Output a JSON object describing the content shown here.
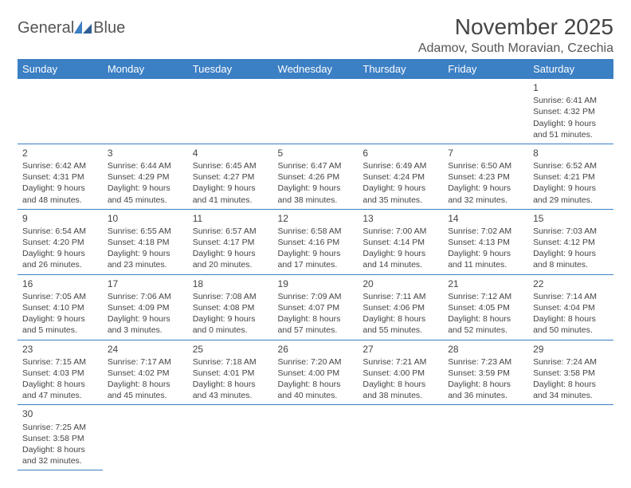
{
  "logo": {
    "text1": "General",
    "text2": "Blue"
  },
  "title": "November 2025",
  "location": "Adamov, South Moravian, Czechia",
  "colors": {
    "header_bg": "#3b7fc4",
    "header_text": "#ffffff",
    "border": "#3b7fc4",
    "text": "#444444",
    "background": "#ffffff"
  },
  "weekdays": [
    "Sunday",
    "Monday",
    "Tuesday",
    "Wednesday",
    "Thursday",
    "Friday",
    "Saturday"
  ],
  "weeks": [
    [
      null,
      null,
      null,
      null,
      null,
      null,
      {
        "n": "1",
        "sunrise": "Sunrise: 6:41 AM",
        "sunset": "Sunset: 4:32 PM",
        "daylight": "Daylight: 9 hours and 51 minutes."
      }
    ],
    [
      {
        "n": "2",
        "sunrise": "Sunrise: 6:42 AM",
        "sunset": "Sunset: 4:31 PM",
        "daylight": "Daylight: 9 hours and 48 minutes."
      },
      {
        "n": "3",
        "sunrise": "Sunrise: 6:44 AM",
        "sunset": "Sunset: 4:29 PM",
        "daylight": "Daylight: 9 hours and 45 minutes."
      },
      {
        "n": "4",
        "sunrise": "Sunrise: 6:45 AM",
        "sunset": "Sunset: 4:27 PM",
        "daylight": "Daylight: 9 hours and 41 minutes."
      },
      {
        "n": "5",
        "sunrise": "Sunrise: 6:47 AM",
        "sunset": "Sunset: 4:26 PM",
        "daylight": "Daylight: 9 hours and 38 minutes."
      },
      {
        "n": "6",
        "sunrise": "Sunrise: 6:49 AM",
        "sunset": "Sunset: 4:24 PM",
        "daylight": "Daylight: 9 hours and 35 minutes."
      },
      {
        "n": "7",
        "sunrise": "Sunrise: 6:50 AM",
        "sunset": "Sunset: 4:23 PM",
        "daylight": "Daylight: 9 hours and 32 minutes."
      },
      {
        "n": "8",
        "sunrise": "Sunrise: 6:52 AM",
        "sunset": "Sunset: 4:21 PM",
        "daylight": "Daylight: 9 hours and 29 minutes."
      }
    ],
    [
      {
        "n": "9",
        "sunrise": "Sunrise: 6:54 AM",
        "sunset": "Sunset: 4:20 PM",
        "daylight": "Daylight: 9 hours and 26 minutes."
      },
      {
        "n": "10",
        "sunrise": "Sunrise: 6:55 AM",
        "sunset": "Sunset: 4:18 PM",
        "daylight": "Daylight: 9 hours and 23 minutes."
      },
      {
        "n": "11",
        "sunrise": "Sunrise: 6:57 AM",
        "sunset": "Sunset: 4:17 PM",
        "daylight": "Daylight: 9 hours and 20 minutes."
      },
      {
        "n": "12",
        "sunrise": "Sunrise: 6:58 AM",
        "sunset": "Sunset: 4:16 PM",
        "daylight": "Daylight: 9 hours and 17 minutes."
      },
      {
        "n": "13",
        "sunrise": "Sunrise: 7:00 AM",
        "sunset": "Sunset: 4:14 PM",
        "daylight": "Daylight: 9 hours and 14 minutes."
      },
      {
        "n": "14",
        "sunrise": "Sunrise: 7:02 AM",
        "sunset": "Sunset: 4:13 PM",
        "daylight": "Daylight: 9 hours and 11 minutes."
      },
      {
        "n": "15",
        "sunrise": "Sunrise: 7:03 AM",
        "sunset": "Sunset: 4:12 PM",
        "daylight": "Daylight: 9 hours and 8 minutes."
      }
    ],
    [
      {
        "n": "16",
        "sunrise": "Sunrise: 7:05 AM",
        "sunset": "Sunset: 4:10 PM",
        "daylight": "Daylight: 9 hours and 5 minutes."
      },
      {
        "n": "17",
        "sunrise": "Sunrise: 7:06 AM",
        "sunset": "Sunset: 4:09 PM",
        "daylight": "Daylight: 9 hours and 3 minutes."
      },
      {
        "n": "18",
        "sunrise": "Sunrise: 7:08 AM",
        "sunset": "Sunset: 4:08 PM",
        "daylight": "Daylight: 9 hours and 0 minutes."
      },
      {
        "n": "19",
        "sunrise": "Sunrise: 7:09 AM",
        "sunset": "Sunset: 4:07 PM",
        "daylight": "Daylight: 8 hours and 57 minutes."
      },
      {
        "n": "20",
        "sunrise": "Sunrise: 7:11 AM",
        "sunset": "Sunset: 4:06 PM",
        "daylight": "Daylight: 8 hours and 55 minutes."
      },
      {
        "n": "21",
        "sunrise": "Sunrise: 7:12 AM",
        "sunset": "Sunset: 4:05 PM",
        "daylight": "Daylight: 8 hours and 52 minutes."
      },
      {
        "n": "22",
        "sunrise": "Sunrise: 7:14 AM",
        "sunset": "Sunset: 4:04 PM",
        "daylight": "Daylight: 8 hours and 50 minutes."
      }
    ],
    [
      {
        "n": "23",
        "sunrise": "Sunrise: 7:15 AM",
        "sunset": "Sunset: 4:03 PM",
        "daylight": "Daylight: 8 hours and 47 minutes."
      },
      {
        "n": "24",
        "sunrise": "Sunrise: 7:17 AM",
        "sunset": "Sunset: 4:02 PM",
        "daylight": "Daylight: 8 hours and 45 minutes."
      },
      {
        "n": "25",
        "sunrise": "Sunrise: 7:18 AM",
        "sunset": "Sunset: 4:01 PM",
        "daylight": "Daylight: 8 hours and 43 minutes."
      },
      {
        "n": "26",
        "sunrise": "Sunrise: 7:20 AM",
        "sunset": "Sunset: 4:00 PM",
        "daylight": "Daylight: 8 hours and 40 minutes."
      },
      {
        "n": "27",
        "sunrise": "Sunrise: 7:21 AM",
        "sunset": "Sunset: 4:00 PM",
        "daylight": "Daylight: 8 hours and 38 minutes."
      },
      {
        "n": "28",
        "sunrise": "Sunrise: 7:23 AM",
        "sunset": "Sunset: 3:59 PM",
        "daylight": "Daylight: 8 hours and 36 minutes."
      },
      {
        "n": "29",
        "sunrise": "Sunrise: 7:24 AM",
        "sunset": "Sunset: 3:58 PM",
        "daylight": "Daylight: 8 hours and 34 minutes."
      }
    ],
    [
      {
        "n": "30",
        "sunrise": "Sunrise: 7:25 AM",
        "sunset": "Sunset: 3:58 PM",
        "daylight": "Daylight: 8 hours and 32 minutes."
      },
      null,
      null,
      null,
      null,
      null,
      null
    ]
  ]
}
